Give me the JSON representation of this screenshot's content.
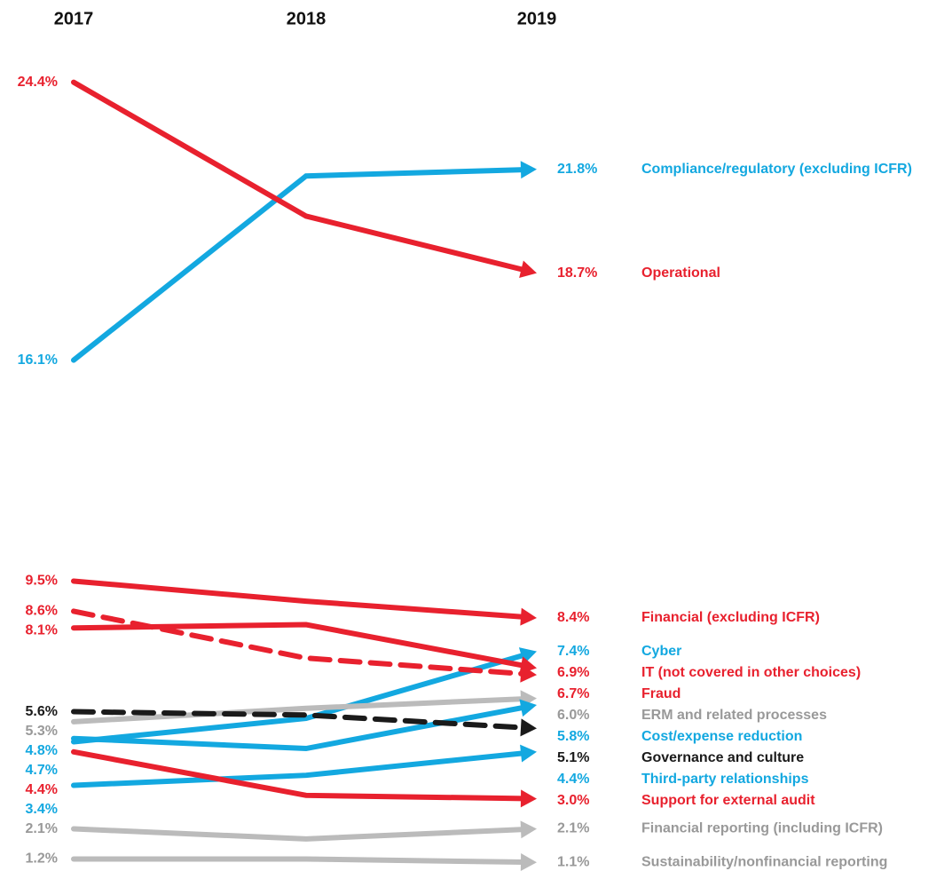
{
  "chart_data": {
    "type": "slope",
    "categories": [
      "2017",
      "2018",
      "2019"
    ],
    "ylim": [
      1,
      25
    ],
    "series": [
      {
        "name": "Compliance/regulatory (excluding ICFR)",
        "color": "#13a8e0",
        "text_color": "#13a8e0",
        "dashed": false,
        "values": [
          16.1,
          21.6,
          21.8
        ],
        "value_labels": [
          "16.1%",
          null,
          "21.8%"
        ]
      },
      {
        "name": "Operational",
        "color": "#e8212e",
        "text_color": "#e8212e",
        "dashed": false,
        "values": [
          24.4,
          20.4,
          18.7
        ],
        "value_labels": [
          "24.4%",
          null,
          "18.7%"
        ]
      },
      {
        "name": "Financial (excluding ICFR)",
        "color": "#e8212e",
        "text_color": "#e8212e",
        "dashed": false,
        "values": [
          9.5,
          8.9,
          8.4
        ],
        "value_labels": [
          "9.5%",
          null,
          "8.4%"
        ]
      },
      {
        "name": "Cyber",
        "color": "#13a8e0",
        "text_color": "#13a8e0",
        "dashed": false,
        "values": [
          4.7,
          5.4,
          7.4
        ],
        "value_labels": [
          "4.7%",
          null,
          "7.4%"
        ]
      },
      {
        "name": "IT (not covered in other choices)",
        "color": "#e8212e",
        "text_color": "#e8212e",
        "dashed": false,
        "values": [
          8.1,
          8.2,
          6.9
        ],
        "value_labels": [
          "8.1%",
          null,
          "6.9%"
        ]
      },
      {
        "name": "Fraud",
        "color": "#e8212e",
        "text_color": "#e8212e",
        "dashed": true,
        "values": [
          8.6,
          7.2,
          6.7
        ],
        "value_labels": [
          "8.6%",
          null,
          "6.7%"
        ]
      },
      {
        "name": "ERM and related processes",
        "color": "#bbbbbb",
        "text_color": "#999999",
        "dashed": false,
        "values": [
          5.3,
          5.7,
          6.0
        ],
        "value_labels": [
          "5.3%",
          null,
          "6.0%"
        ]
      },
      {
        "name": "Cost/expense reduction",
        "color": "#13a8e0",
        "text_color": "#13a8e0",
        "dashed": false,
        "values": [
          4.8,
          4.5,
          5.8
        ],
        "value_labels": [
          "4.8%",
          null,
          "5.8%"
        ]
      },
      {
        "name": "Governance and culture",
        "color": "#1a1a1a",
        "text_color": "#1a1a1a",
        "dashed": true,
        "values": [
          5.6,
          5.5,
          5.1
        ],
        "value_labels": [
          "5.6%",
          null,
          "5.1%"
        ]
      },
      {
        "name": "Third-party relationships",
        "color": "#13a8e0",
        "text_color": "#13a8e0",
        "dashed": false,
        "values": [
          3.4,
          3.7,
          4.4
        ],
        "value_labels": [
          "3.4%",
          null,
          "4.4%"
        ]
      },
      {
        "name": "Support for external audit",
        "color": "#e8212e",
        "text_color": "#e8212e",
        "dashed": false,
        "values": [
          4.4,
          3.1,
          3.0
        ],
        "value_labels": [
          "4.4%",
          null,
          "3.0%"
        ]
      },
      {
        "name": "Financial reporting (including ICFR)",
        "color": "#bbbbbb",
        "text_color": "#999999",
        "dashed": false,
        "values": [
          2.1,
          1.8,
          2.1
        ],
        "value_labels": [
          "2.1%",
          null,
          "2.1%"
        ]
      },
      {
        "name": "Sustainability/nonfinancial reporting",
        "color": "#bbbbbb",
        "text_color": "#999999",
        "dashed": false,
        "values": [
          1.2,
          1.2,
          1.1
        ],
        "value_labels": [
          "1.2%",
          null,
          "1.1%"
        ]
      }
    ]
  }
}
